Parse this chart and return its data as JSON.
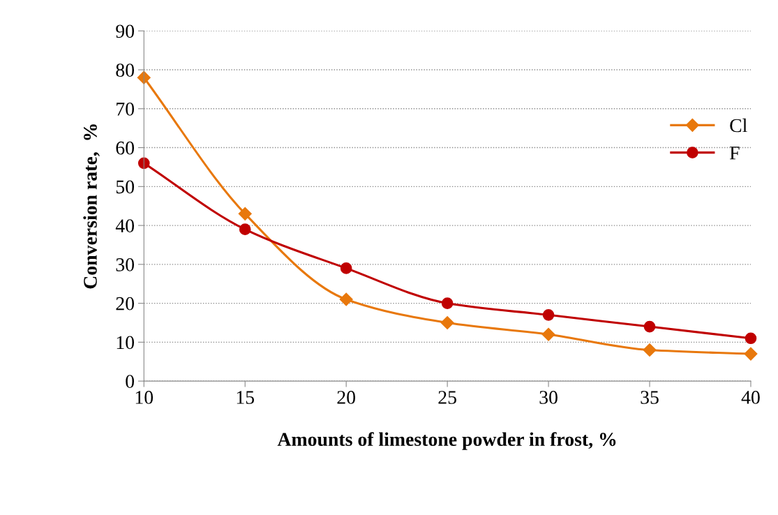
{
  "chart_data": {
    "type": "line",
    "xlabel": "Amounts of limestone powder in frost, %",
    "ylabel": "Conversion rate,  %",
    "x": [
      10,
      15,
      20,
      25,
      30,
      35,
      40
    ],
    "series": [
      {
        "name": "Cl",
        "color": "#e8780c",
        "marker": "diamond",
        "values": [
          78,
          43,
          21,
          15,
          12,
          8,
          7
        ]
      },
      {
        "name": "F",
        "color": "#c00000",
        "marker": "circle",
        "values": [
          56,
          39,
          29,
          20,
          17,
          14,
          11
        ]
      }
    ],
    "xlim": [
      10,
      40
    ],
    "xticks": [
      10,
      15,
      20,
      25,
      30,
      35,
      40
    ],
    "ylim": [
      0,
      90
    ],
    "yticks": [
      0,
      10,
      20,
      30,
      40,
      50,
      60,
      70,
      80,
      90
    ],
    "grid": "y",
    "legend": "top right",
    "line_style": "solid"
  }
}
